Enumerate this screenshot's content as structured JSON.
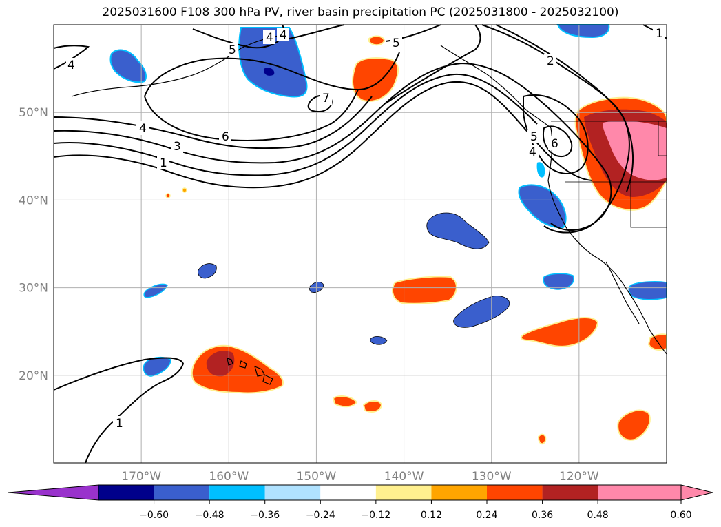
{
  "title": "2025031600 F108 300 hPa PV, river basin precipitation PC (2025031800 - 2025032100)",
  "map": {
    "lon_range": [
      -180,
      -110
    ],
    "lat_range": [
      10,
      60
    ],
    "lon_ticks": [
      {
        "value": -170,
        "label": "170°W"
      },
      {
        "value": -160,
        "label": "160°W"
      },
      {
        "value": -150,
        "label": "150°W"
      },
      {
        "value": -140,
        "label": "140°W"
      },
      {
        "value": -130,
        "label": "130°W"
      },
      {
        "value": -120,
        "label": "120°W"
      }
    ],
    "lat_ticks": [
      {
        "value": 20,
        "label": "20°N"
      },
      {
        "value": 30,
        "label": "30°N"
      },
      {
        "value": 40,
        "label": "40°N"
      },
      {
        "value": 50,
        "label": "50°N"
      }
    ],
    "grid": true,
    "contour_labels": [
      "1",
      "3",
      "4",
      "5",
      "6",
      "7",
      "1",
      "4",
      "5",
      "2",
      "1",
      "4",
      "4",
      "5",
      "6",
      "4"
    ]
  },
  "colorbar": {
    "ticks": [
      "−0.60",
      "−0.48",
      "−0.36",
      "−0.24",
      "−0.12",
      "0.12",
      "0.24",
      "0.36",
      "0.48",
      "0.60"
    ],
    "colors": [
      "#9932cc",
      "#00008b",
      "#3a5fcd",
      "#00bfff",
      "#b0e2ff",
      "#ffffff",
      "#fff08f",
      "#ffa500",
      "#ff4500",
      "#b22222",
      "#ff88aa",
      "#ff88aa"
    ],
    "extend": "both"
  }
}
